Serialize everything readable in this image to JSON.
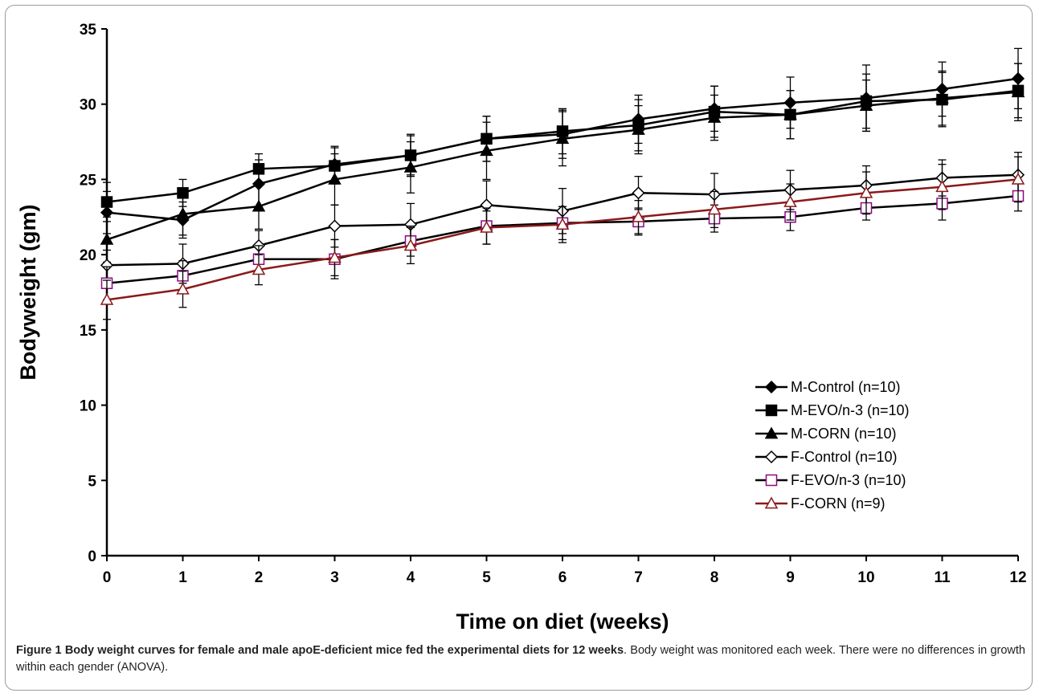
{
  "chart_data": {
    "type": "line",
    "title": "",
    "xlabel": "Time on diet (weeks)",
    "ylabel": "Bodyweight (gm)",
    "xlim": [
      0,
      12
    ],
    "ylim": [
      0,
      35
    ],
    "xticks": [
      0,
      1,
      2,
      3,
      4,
      5,
      6,
      7,
      8,
      9,
      10,
      11,
      12
    ],
    "yticks": [
      0,
      5,
      10,
      15,
      20,
      25,
      30,
      35
    ],
    "grid": false,
    "legend_position": "bottom-right",
    "x": [
      0,
      1,
      2,
      3,
      4,
      5,
      6,
      7,
      8,
      9,
      10,
      11,
      12
    ],
    "series": [
      {
        "name": "M-Control (n=10)",
        "marker": "diamond",
        "filled": true,
        "color": "#000000",
        "values": [
          22.8,
          22.3,
          24.7,
          26.0,
          26.6,
          27.7,
          28.0,
          29.0,
          29.7,
          30.1,
          30.4,
          31.0,
          31.7
        ],
        "errors": [
          1.4,
          1.2,
          1.6,
          1.2,
          1.4,
          1.5,
          1.6,
          1.6,
          1.5,
          1.7,
          2.2,
          1.8,
          2.0
        ]
      },
      {
        "name": "M-EVO/n-3 (n=10)",
        "marker": "square",
        "filled": true,
        "color": "#000000",
        "values": [
          23.5,
          24.1,
          25.7,
          25.9,
          26.6,
          27.7,
          28.2,
          28.6,
          29.5,
          29.3,
          30.2,
          30.3,
          30.9
        ],
        "errors": [
          1.3,
          0.9,
          1.0,
          1.2,
          1.3,
          1.5,
          1.5,
          1.7,
          1.7,
          1.6,
          1.8,
          1.8,
          1.8
        ]
      },
      {
        "name": "M-CORN (n=10)",
        "marker": "triangle",
        "filled": true,
        "color": "#000000",
        "values": [
          21.0,
          22.7,
          23.2,
          25.0,
          25.8,
          26.9,
          27.7,
          28.3,
          29.1,
          29.3,
          29.9,
          30.4,
          30.8
        ],
        "errors": [
          1.5,
          1.4,
          1.5,
          1.7,
          1.7,
          1.9,
          1.8,
          1.6,
          1.5,
          1.6,
          1.7,
          1.8,
          1.9
        ]
      },
      {
        "name": "F-Control (n=10)",
        "marker": "diamond",
        "filled": false,
        "color": "#000000",
        "values": [
          19.3,
          19.4,
          20.6,
          21.9,
          22.0,
          23.3,
          22.9,
          24.1,
          24.0,
          24.3,
          24.6,
          25.1,
          25.3
        ],
        "errors": [
          1.0,
          1.3,
          1.0,
          1.4,
          1.4,
          1.6,
          1.5,
          1.1,
          1.4,
          1.3,
          1.3,
          1.2,
          1.5
        ]
      },
      {
        "name": "F-EVO/n-3 (n=10)",
        "marker": "square",
        "filled": false,
        "color": "#000000",
        "marker_color": "#8b0a7e",
        "values": [
          18.1,
          18.6,
          19.7,
          19.7,
          20.9,
          21.9,
          22.1,
          22.2,
          22.4,
          22.5,
          23.1,
          23.4,
          23.9
        ],
        "errors": [
          1.1,
          1.0,
          0.9,
          1.3,
          1.0,
          1.2,
          1.1,
          0.9,
          0.9,
          0.9,
          0.8,
          1.1,
          1.0
        ]
      },
      {
        "name": "F-CORN (n=9)",
        "marker": "triangle",
        "filled": false,
        "color": "#8b1a1a",
        "values": [
          17.0,
          17.7,
          19.0,
          19.8,
          20.6,
          21.8,
          22.0,
          22.5,
          23.0,
          23.5,
          24.1,
          24.5,
          25.0
        ],
        "errors": [
          1.3,
          1.2,
          1.0,
          1.2,
          1.2,
          1.1,
          1.2,
          1.1,
          1.2,
          1.2,
          1.4,
          1.5,
          1.5
        ]
      }
    ]
  },
  "caption": {
    "label": "Figure 1 Body weight curves for female and male apoE-deficient mice fed the experimental diets for 12 weeks",
    "text": ". Body weight was monitored each week. There were no differences in growth within each gender (ANOVA)."
  }
}
